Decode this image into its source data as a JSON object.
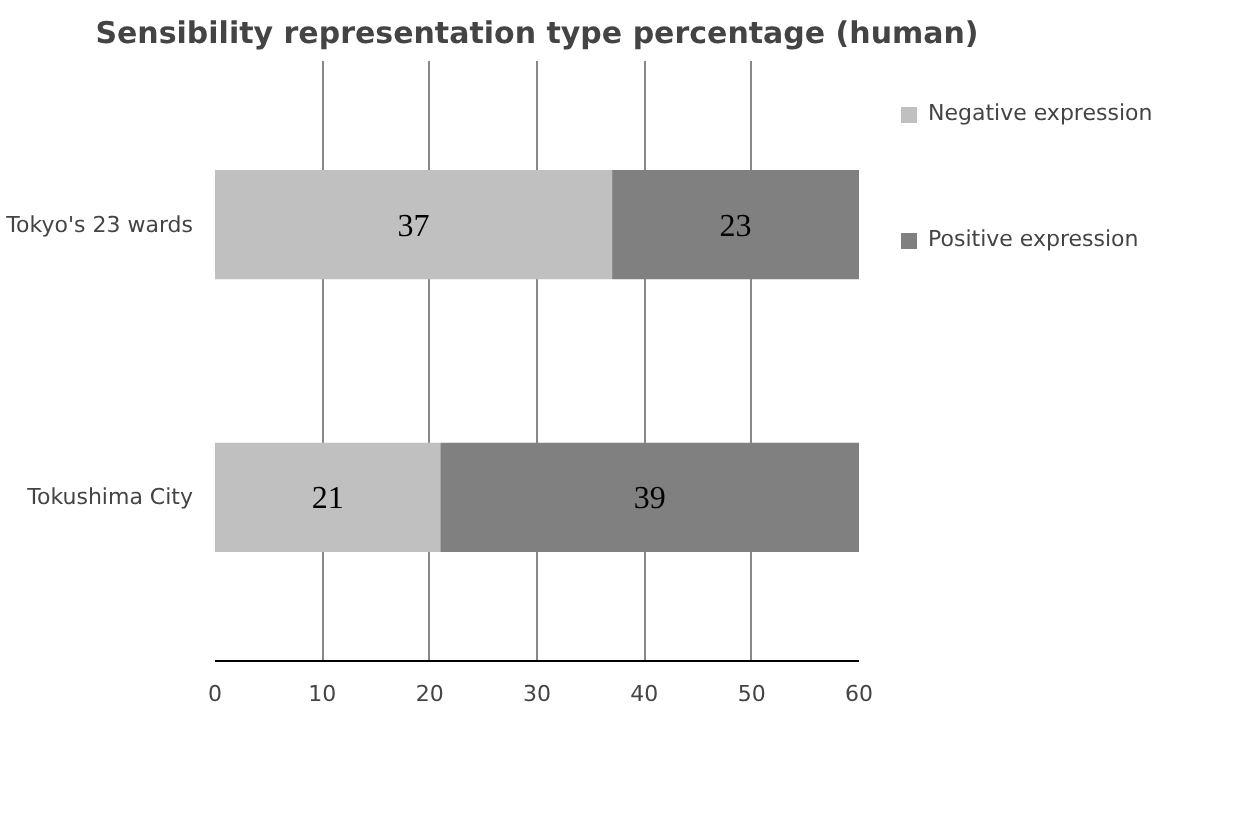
{
  "chart_data": {
    "type": "bar",
    "orientation": "horizontal",
    "stacked": true,
    "title": "Sensibility representation type percentage (human)",
    "categories": [
      "Tokyo's 23 wards",
      "Tokushima City"
    ],
    "series": [
      {
        "name": "Negative expression",
        "color": "#c0c0c0",
        "values": [
          37,
          21
        ]
      },
      {
        "name": "Positive expression",
        "color": "#808080",
        "values": [
          23,
          39
        ]
      }
    ],
    "xlim": [
      0,
      60
    ],
    "xticks": [
      0,
      10,
      20,
      30,
      40,
      50,
      60
    ],
    "grid": "x",
    "legend": "right",
    "data_labels": true
  }
}
